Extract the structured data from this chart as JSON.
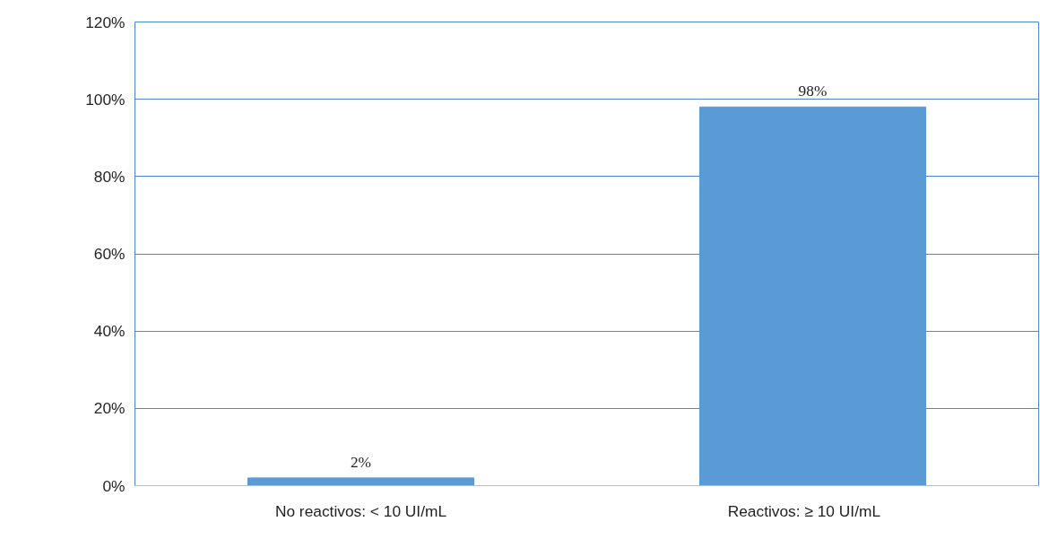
{
  "chart_data": {
    "type": "bar",
    "categories": [
      "No reactivos: < 10 UI/mL",
      "Reactivos:     ≥ 10 UI/mL"
    ],
    "values": [
      2,
      98
    ],
    "value_labels": [
      "2%",
      "98%"
    ],
    "color": "#5b9bd5",
    "ylim": [
      0,
      120
    ],
    "yticks": [
      {
        "value": 0,
        "label": "0%"
      },
      {
        "value": 20,
        "label": "20%"
      },
      {
        "value": 40,
        "label": "40%"
      },
      {
        "value": 60,
        "label": "60%"
      },
      {
        "value": 80,
        "label": "80%"
      },
      {
        "value": 100,
        "label": "100%"
      },
      {
        "value": 120,
        "label": "120%"
      }
    ],
    "grid": "y"
  }
}
